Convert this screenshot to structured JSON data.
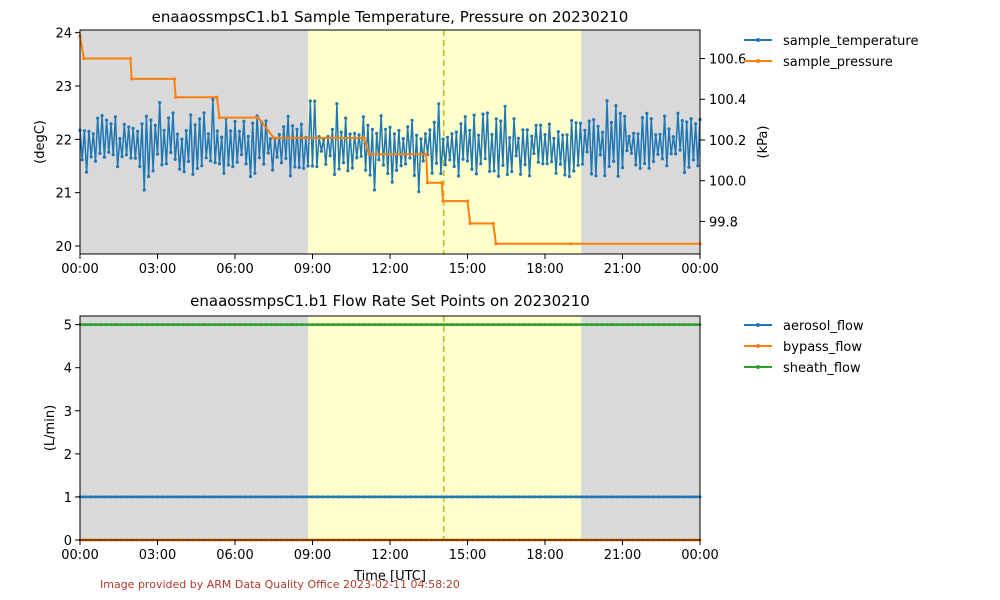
{
  "colors": {
    "night": "#d9d9d9",
    "day": "#ffffcc",
    "noon_line": "#bcbd22",
    "blue": "#1f77b4",
    "orange": "#ff7f0e",
    "green": "#2ca02c",
    "credit": "#b03a2e"
  },
  "footer": {
    "credit": "Image provided by ARM Data Quality Office 2023-02-11 04:58:20"
  },
  "shading": {
    "night_until_hour": 8.83,
    "night_from_hour": 19.4,
    "solar_noon_hour": 14.08
  },
  "chart_data": [
    {
      "type": "line",
      "title": "enaaossmpsC1.b1 Sample Temperature, Pressure on 20230210",
      "xlabel": "",
      "ylabel": "(degC)",
      "ylabel_right": "(kPa)",
      "x_ticks": [
        "00:00",
        "03:00",
        "06:00",
        "09:00",
        "12:00",
        "15:00",
        "18:00",
        "21:00",
        "00:00"
      ],
      "x_range_hours": [
        0,
        24
      ],
      "ylim": [
        19.85,
        24.05
      ],
      "y_ticks": [
        20,
        21,
        22,
        23,
        24
      ],
      "ylim_right": [
        99.64,
        100.74
      ],
      "y_ticks_right": [
        99.8,
        100.0,
        100.2,
        100.4,
        100.6
      ],
      "legend_position": "outside-right",
      "series": [
        {
          "name": "sample_temperature",
          "axis": "left",
          "color": "#1f77b4",
          "description_values": "oscillates between 21.3 and 22.5 degC all day",
          "low": 21.3,
          "high": 22.5,
          "extremes": [
            21.0,
            22.8
          ]
        },
        {
          "name": "sample_pressure",
          "axis": "right",
          "color": "#ff7f0e",
          "points": [
            [
              0.0,
              100.71
            ],
            [
              0.15,
              100.6
            ],
            [
              1.95,
              100.6
            ],
            [
              2.0,
              100.5
            ],
            [
              3.65,
              100.5
            ],
            [
              3.7,
              100.41
            ],
            [
              5.3,
              100.41
            ],
            [
              5.4,
              100.31
            ],
            [
              6.9,
              100.31
            ],
            [
              7.5,
              100.21
            ],
            [
              11.0,
              100.21
            ],
            [
              11.2,
              100.13
            ],
            [
              13.4,
              100.13
            ],
            [
              13.45,
              99.99
            ],
            [
              14.0,
              99.99
            ],
            [
              14.05,
              99.9
            ],
            [
              15.0,
              99.9
            ],
            [
              15.1,
              99.79
            ],
            [
              16.0,
              99.79
            ],
            [
              16.1,
              99.69
            ],
            [
              19.0,
              99.69
            ],
            [
              24.0,
              99.69
            ]
          ]
        }
      ]
    },
    {
      "type": "line",
      "title": "enaaossmpsC1.b1 Flow Rate Set Points on 20230210",
      "xlabel": "Time [UTC]",
      "ylabel": "(L/min)",
      "x_ticks": [
        "00:00",
        "03:00",
        "06:00",
        "09:00",
        "12:00",
        "15:00",
        "18:00",
        "21:00",
        "00:00"
      ],
      "x_range_hours": [
        0,
        24
      ],
      "ylim": [
        0,
        5.2
      ],
      "y_ticks": [
        0,
        1,
        2,
        3,
        4,
        5
      ],
      "legend_position": "outside-right",
      "series": [
        {
          "name": "aerosol_flow",
          "color": "#1f77b4",
          "constant": 1.0
        },
        {
          "name": "bypass_flow",
          "color": "#ff7f0e",
          "constant": 0.0
        },
        {
          "name": "sheath_flow",
          "color": "#2ca02c",
          "constant": 5.0
        }
      ]
    }
  ]
}
